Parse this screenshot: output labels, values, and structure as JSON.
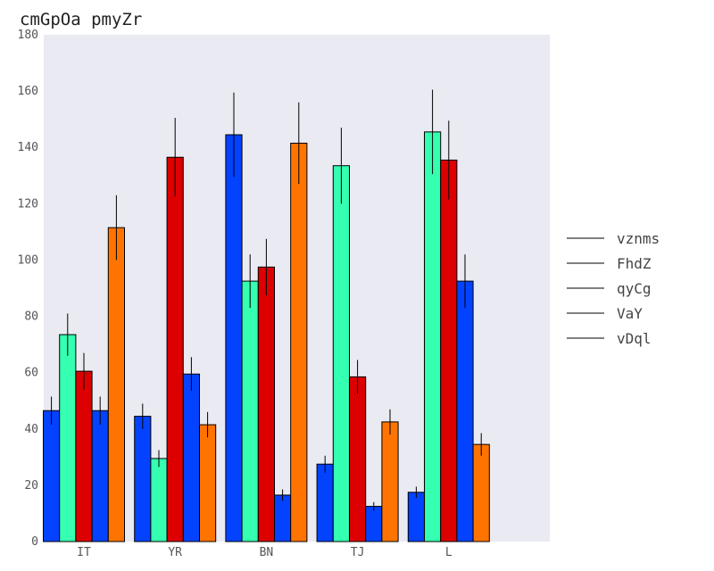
{
  "chart_data": {
    "type": "bar",
    "title": "cmGpOa  pmyZr",
    "xlabel": "",
    "ylabel": "",
    "categories": [
      "IT",
      "YR",
      "BN",
      "TJ",
      "L"
    ],
    "ylim": [
      0,
      180
    ],
    "yticks": [
      0,
      20,
      40,
      60,
      80,
      100,
      120,
      140,
      160,
      180
    ],
    "grid": false,
    "legend_position": "right",
    "series": [
      {
        "name": "vznms",
        "color": "#0343ff",
        "values": [
          46.5,
          44.5,
          144.5,
          27.5,
          17.5
        ],
        "errors": [
          5,
          4.5,
          15,
          3,
          2
        ]
      },
      {
        "name": "FhdZ",
        "color": "#35ffb0",
        "values": [
          73.5,
          29.5,
          92.5,
          133.5,
          145.5
        ],
        "errors": [
          7.5,
          3,
          9.5,
          13.5,
          15
        ]
      },
      {
        "name": "qyCg",
        "color": "#dd0000",
        "values": [
          60.5,
          136.5,
          97.5,
          58.5,
          135.5
        ],
        "errors": [
          6.5,
          14,
          10,
          6,
          14
        ]
      },
      {
        "name": "VaY",
        "color": "#0343ff",
        "values": [
          46.5,
          59.5,
          16.5,
          12.5,
          92.5
        ],
        "errors": [
          5,
          6,
          2,
          1.5,
          9.5
        ]
      },
      {
        "name": "vDql",
        "color": "#ff7400",
        "values": [
          111.5,
          41.5,
          141.5,
          42.5,
          34.5
        ],
        "errors": [
          11.5,
          4.5,
          14.5,
          4.5,
          4
        ]
      }
    ]
  }
}
